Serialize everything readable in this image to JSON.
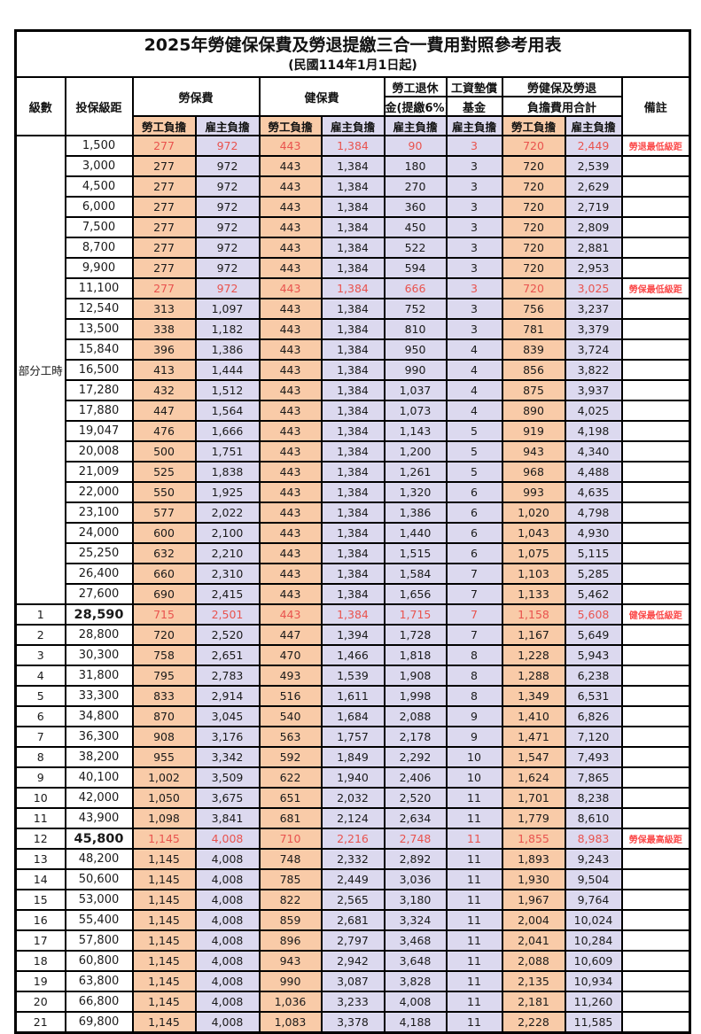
{
  "title": "2025年勞健保保費及勞退提繳三合一費用對照參考用表",
  "subtitle": "(民國114年1月1日起)",
  "header": {
    "level": "級數",
    "bracket": "投保級距",
    "labor_insurance": "勞保費",
    "health_insurance": "健保費",
    "pension_line1": "勞工退休",
    "pension_line2": "金(提繳6%)",
    "wage_fund_line1": "工資墊償",
    "wage_fund_line2": "基金",
    "total_line1": "勞健保及勞退",
    "total_line2": "負擔費用合計",
    "remark": "備註",
    "employee": "勞工負擔",
    "employer": "雇主負擔"
  },
  "part_time_label": "部分工時",
  "part_time_rowspan": 23,
  "colors": {
    "employee_fill": "#F9CBA8",
    "employer_fill": "#DCD9EF",
    "highlight_text": "#E9534E",
    "remark_text": "#FB4B4B"
  },
  "rows": [
    {
      "lv": "",
      "br": "1,500",
      "v": [
        "277",
        "972",
        "443",
        "1,384",
        "90",
        "3",
        "720",
        "2,449"
      ],
      "rm": "勞退最低級距",
      "red": true,
      "emph": false
    },
    {
      "lv": "",
      "br": "3,000",
      "v": [
        "277",
        "972",
        "443",
        "1,384",
        "180",
        "3",
        "720",
        "2,539"
      ],
      "rm": "",
      "red": false,
      "emph": false
    },
    {
      "lv": "",
      "br": "4,500",
      "v": [
        "277",
        "972",
        "443",
        "1,384",
        "270",
        "3",
        "720",
        "2,629"
      ],
      "rm": "",
      "red": false,
      "emph": false
    },
    {
      "lv": "",
      "br": "6,000",
      "v": [
        "277",
        "972",
        "443",
        "1,384",
        "360",
        "3",
        "720",
        "2,719"
      ],
      "rm": "",
      "red": false,
      "emph": false
    },
    {
      "lv": "",
      "br": "7,500",
      "v": [
        "277",
        "972",
        "443",
        "1,384",
        "450",
        "3",
        "720",
        "2,809"
      ],
      "rm": "",
      "red": false,
      "emph": false
    },
    {
      "lv": "",
      "br": "8,700",
      "v": [
        "277",
        "972",
        "443",
        "1,384",
        "522",
        "3",
        "720",
        "2,881"
      ],
      "rm": "",
      "red": false,
      "emph": false
    },
    {
      "lv": "",
      "br": "9,900",
      "v": [
        "277",
        "972",
        "443",
        "1,384",
        "594",
        "3",
        "720",
        "2,953"
      ],
      "rm": "",
      "red": false,
      "emph": false
    },
    {
      "lv": "",
      "br": "11,100",
      "v": [
        "277",
        "972",
        "443",
        "1,384",
        "666",
        "3",
        "720",
        "3,025"
      ],
      "rm": "勞保最低級距",
      "red": true,
      "emph": false
    },
    {
      "lv": "",
      "br": "12,540",
      "v": [
        "313",
        "1,097",
        "443",
        "1,384",
        "752",
        "3",
        "756",
        "3,237"
      ],
      "rm": "",
      "red": false,
      "emph": false
    },
    {
      "lv": "",
      "br": "13,500",
      "v": [
        "338",
        "1,182",
        "443",
        "1,384",
        "810",
        "3",
        "781",
        "3,379"
      ],
      "rm": "",
      "red": false,
      "emph": false
    },
    {
      "lv": "",
      "br": "15,840",
      "v": [
        "396",
        "1,386",
        "443",
        "1,384",
        "950",
        "4",
        "839",
        "3,724"
      ],
      "rm": "",
      "red": false,
      "emph": false
    },
    {
      "lv": "",
      "br": "16,500",
      "v": [
        "413",
        "1,444",
        "443",
        "1,384",
        "990",
        "4",
        "856",
        "3,822"
      ],
      "rm": "",
      "red": false,
      "emph": false
    },
    {
      "lv": "",
      "br": "17,280",
      "v": [
        "432",
        "1,512",
        "443",
        "1,384",
        "1,037",
        "4",
        "875",
        "3,937"
      ],
      "rm": "",
      "red": false,
      "emph": false
    },
    {
      "lv": "",
      "br": "17,880",
      "v": [
        "447",
        "1,564",
        "443",
        "1,384",
        "1,073",
        "4",
        "890",
        "4,025"
      ],
      "rm": "",
      "red": false,
      "emph": false
    },
    {
      "lv": "",
      "br": "19,047",
      "v": [
        "476",
        "1,666",
        "443",
        "1,384",
        "1,143",
        "5",
        "919",
        "4,198"
      ],
      "rm": "",
      "red": false,
      "emph": false
    },
    {
      "lv": "",
      "br": "20,008",
      "v": [
        "500",
        "1,751",
        "443",
        "1,384",
        "1,200",
        "5",
        "943",
        "4,340"
      ],
      "rm": "",
      "red": false,
      "emph": false
    },
    {
      "lv": "",
      "br": "21,009",
      "v": [
        "525",
        "1,838",
        "443",
        "1,384",
        "1,261",
        "5",
        "968",
        "4,488"
      ],
      "rm": "",
      "red": false,
      "emph": false
    },
    {
      "lv": "",
      "br": "22,000",
      "v": [
        "550",
        "1,925",
        "443",
        "1,384",
        "1,320",
        "6",
        "993",
        "4,635"
      ],
      "rm": "",
      "red": false,
      "emph": false
    },
    {
      "lv": "",
      "br": "23,100",
      "v": [
        "577",
        "2,022",
        "443",
        "1,384",
        "1,386",
        "6",
        "1,020",
        "4,798"
      ],
      "rm": "",
      "red": false,
      "emph": false
    },
    {
      "lv": "",
      "br": "24,000",
      "v": [
        "600",
        "2,100",
        "443",
        "1,384",
        "1,440",
        "6",
        "1,043",
        "4,930"
      ],
      "rm": "",
      "red": false,
      "emph": false
    },
    {
      "lv": "",
      "br": "25,250",
      "v": [
        "632",
        "2,210",
        "443",
        "1,384",
        "1,515",
        "6",
        "1,075",
        "5,115"
      ],
      "rm": "",
      "red": false,
      "emph": false
    },
    {
      "lv": "",
      "br": "26,400",
      "v": [
        "660",
        "2,310",
        "443",
        "1,384",
        "1,584",
        "7",
        "1,103",
        "5,285"
      ],
      "rm": "",
      "red": false,
      "emph": false
    },
    {
      "lv": "",
      "br": "27,600",
      "v": [
        "690",
        "2,415",
        "443",
        "1,384",
        "1,656",
        "7",
        "1,133",
        "5,462"
      ],
      "rm": "",
      "red": false,
      "emph": false
    },
    {
      "lv": "1",
      "br": "28,590",
      "v": [
        "715",
        "2,501",
        "443",
        "1,384",
        "1,715",
        "7",
        "1,158",
        "5,608"
      ],
      "rm": "健保最低級距",
      "red": true,
      "emph": true
    },
    {
      "lv": "2",
      "br": "28,800",
      "v": [
        "720",
        "2,520",
        "447",
        "1,394",
        "1,728",
        "7",
        "1,167",
        "5,649"
      ],
      "rm": "",
      "red": false,
      "emph": false
    },
    {
      "lv": "3",
      "br": "30,300",
      "v": [
        "758",
        "2,651",
        "470",
        "1,466",
        "1,818",
        "8",
        "1,228",
        "5,943"
      ],
      "rm": "",
      "red": false,
      "emph": false
    },
    {
      "lv": "4",
      "br": "31,800",
      "v": [
        "795",
        "2,783",
        "493",
        "1,539",
        "1,908",
        "8",
        "1,288",
        "6,238"
      ],
      "rm": "",
      "red": false,
      "emph": false
    },
    {
      "lv": "5",
      "br": "33,300",
      "v": [
        "833",
        "2,914",
        "516",
        "1,611",
        "1,998",
        "8",
        "1,349",
        "6,531"
      ],
      "rm": "",
      "red": false,
      "emph": false
    },
    {
      "lv": "6",
      "br": "34,800",
      "v": [
        "870",
        "3,045",
        "540",
        "1,684",
        "2,088",
        "9",
        "1,410",
        "6,826"
      ],
      "rm": "",
      "red": false,
      "emph": false
    },
    {
      "lv": "7",
      "br": "36,300",
      "v": [
        "908",
        "3,176",
        "563",
        "1,757",
        "2,178",
        "9",
        "1,471",
        "7,120"
      ],
      "rm": "",
      "red": false,
      "emph": false
    },
    {
      "lv": "8",
      "br": "38,200",
      "v": [
        "955",
        "3,342",
        "592",
        "1,849",
        "2,292",
        "10",
        "1,547",
        "7,493"
      ],
      "rm": "",
      "red": false,
      "emph": false
    },
    {
      "lv": "9",
      "br": "40,100",
      "v": [
        "1,002",
        "3,509",
        "622",
        "1,940",
        "2,406",
        "10",
        "1,624",
        "7,865"
      ],
      "rm": "",
      "red": false,
      "emph": false
    },
    {
      "lv": "10",
      "br": "42,000",
      "v": [
        "1,050",
        "3,675",
        "651",
        "2,032",
        "2,520",
        "11",
        "1,701",
        "8,238"
      ],
      "rm": "",
      "red": false,
      "emph": false
    },
    {
      "lv": "11",
      "br": "43,900",
      "v": [
        "1,098",
        "3,841",
        "681",
        "2,124",
        "2,634",
        "11",
        "1,779",
        "8,610"
      ],
      "rm": "",
      "red": false,
      "emph": false
    },
    {
      "lv": "12",
      "br": "45,800",
      "v": [
        "1,145",
        "4,008",
        "710",
        "2,216",
        "2,748",
        "11",
        "1,855",
        "8,983"
      ],
      "rm": "勞保最高級距",
      "red": true,
      "emph": true
    },
    {
      "lv": "13",
      "br": "48,200",
      "v": [
        "1,145",
        "4,008",
        "748",
        "2,332",
        "2,892",
        "11",
        "1,893",
        "9,243"
      ],
      "rm": "",
      "red": false,
      "emph": false
    },
    {
      "lv": "14",
      "br": "50,600",
      "v": [
        "1,145",
        "4,008",
        "785",
        "2,449",
        "3,036",
        "11",
        "1,930",
        "9,504"
      ],
      "rm": "",
      "red": false,
      "emph": false
    },
    {
      "lv": "15",
      "br": "53,000",
      "v": [
        "1,145",
        "4,008",
        "822",
        "2,565",
        "3,180",
        "11",
        "1,967",
        "9,764"
      ],
      "rm": "",
      "red": false,
      "emph": false
    },
    {
      "lv": "16",
      "br": "55,400",
      "v": [
        "1,145",
        "4,008",
        "859",
        "2,681",
        "3,324",
        "11",
        "2,004",
        "10,024"
      ],
      "rm": "",
      "red": false,
      "emph": false
    },
    {
      "lv": "17",
      "br": "57,800",
      "v": [
        "1,145",
        "4,008",
        "896",
        "2,797",
        "3,468",
        "11",
        "2,041",
        "10,284"
      ],
      "rm": "",
      "red": false,
      "emph": false
    },
    {
      "lv": "18",
      "br": "60,800",
      "v": [
        "1,145",
        "4,008",
        "943",
        "2,942",
        "3,648",
        "11",
        "2,088",
        "10,609"
      ],
      "rm": "",
      "red": false,
      "emph": false
    },
    {
      "lv": "19",
      "br": "63,800",
      "v": [
        "1,145",
        "4,008",
        "990",
        "3,087",
        "3,828",
        "11",
        "2,135",
        "10,934"
      ],
      "rm": "",
      "red": false,
      "emph": false
    },
    {
      "lv": "20",
      "br": "66,800",
      "v": [
        "1,145",
        "4,008",
        "1,036",
        "3,233",
        "4,008",
        "11",
        "2,181",
        "11,260"
      ],
      "rm": "",
      "red": false,
      "emph": false
    },
    {
      "lv": "21",
      "br": "69,800",
      "v": [
        "1,145",
        "4,008",
        "1,083",
        "3,378",
        "4,188",
        "11",
        "2,228",
        "11,585"
      ],
      "rm": "",
      "red": false,
      "emph": false
    }
  ]
}
